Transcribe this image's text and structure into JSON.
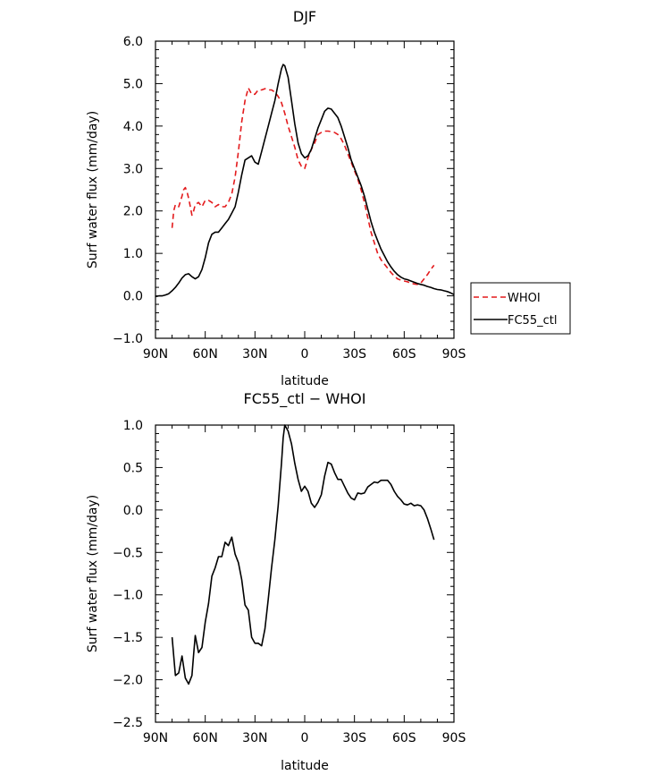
{
  "chart_data": [
    {
      "type": "line",
      "title": "DJF",
      "xlabel": "latitude",
      "ylabel": "Surf water flux (mm/day)",
      "xlim": [
        90,
        -90
      ],
      "ylim": [
        -1.0,
        6.0
      ],
      "x_ticks": [
        90,
        60,
        30,
        0,
        -30,
        -60,
        -90
      ],
      "x_tick_labels": [
        "90N",
        "60N",
        "30N",
        "0",
        "30S",
        "60S",
        "90S"
      ],
      "y_ticks": [
        -1.0,
        0.0,
        1.0,
        2.0,
        3.0,
        4.0,
        5.0,
        6.0
      ],
      "y_tick_labels": [
        "−1.0",
        "0.0",
        "1.0",
        "2.0",
        "3.0",
        "4.0",
        "5.0",
        "6.0"
      ],
      "legend_position": "outside right, lower",
      "series": [
        {
          "name": "WHOI",
          "color": "#e31a1c",
          "dash": "dashed",
          "x": [
            80,
            79,
            78,
            76,
            74,
            73,
            72,
            71,
            70,
            69,
            68,
            67,
            66,
            64,
            62,
            60,
            58,
            56,
            54,
            52,
            50,
            48,
            46,
            44,
            42,
            40,
            38,
            36,
            34,
            32,
            30,
            28,
            26,
            24,
            22,
            20,
            18,
            16,
            14,
            12,
            10,
            8,
            6,
            4,
            2,
            0,
            -2,
            -4,
            -6,
            -8,
            -10,
            -12,
            -14,
            -16,
            -18,
            -20,
            -22,
            -24,
            -26,
            -28,
            -30,
            -32,
            -34,
            -36,
            -38,
            -40,
            -42,
            -44,
            -46,
            -48,
            -50,
            -52,
            -54,
            -56,
            -58,
            -60,
            -62,
            -64,
            -66,
            -68,
            -70,
            -72,
            -74,
            -76,
            -78
          ],
          "y": [
            1.6,
            2.0,
            2.15,
            2.1,
            2.35,
            2.5,
            2.55,
            2.45,
            2.3,
            2.1,
            1.9,
            2.0,
            2.15,
            2.2,
            2.1,
            2.25,
            2.25,
            2.2,
            2.1,
            2.15,
            2.1,
            2.1,
            2.2,
            2.4,
            2.8,
            3.4,
            4.1,
            4.6,
            4.9,
            4.75,
            4.75,
            4.85,
            4.85,
            4.88,
            4.85,
            4.85,
            4.8,
            4.7,
            4.55,
            4.3,
            4.0,
            3.75,
            3.5,
            3.2,
            3.05,
            3.0,
            3.25,
            3.45,
            3.6,
            3.8,
            3.85,
            3.88,
            3.88,
            3.87,
            3.85,
            3.8,
            3.7,
            3.55,
            3.35,
            3.15,
            2.95,
            2.75,
            2.5,
            2.2,
            1.85,
            1.5,
            1.25,
            1.0,
            0.85,
            0.75,
            0.65,
            0.55,
            0.47,
            0.4,
            0.37,
            0.35,
            0.33,
            0.3,
            0.28,
            0.27,
            0.3,
            0.4,
            0.5,
            0.62,
            0.72
          ]
        },
        {
          "name": "FC55_ctl",
          "color": "#000000",
          "dash": "solid",
          "x": [
            90,
            88,
            86,
            84,
            82,
            80,
            78,
            76,
            74,
            72,
            70,
            68,
            66,
            64,
            62,
            60,
            58,
            56,
            54,
            52,
            50,
            48,
            46,
            44,
            42,
            40,
            38,
            36,
            34,
            32,
            30,
            28,
            26,
            24,
            22,
            20,
            18,
            16,
            14,
            13,
            12,
            10,
            8,
            6,
            4,
            2,
            0,
            -2,
            -4,
            -6,
            -8,
            -10,
            -12,
            -14,
            -16,
            -18,
            -20,
            -22,
            -24,
            -26,
            -28,
            -30,
            -32,
            -34,
            -36,
            -38,
            -40,
            -42,
            -44,
            -46,
            -48,
            -50,
            -52,
            -54,
            -56,
            -58,
            -60,
            -62,
            -64,
            -66,
            -68,
            -70,
            -72,
            -74,
            -76,
            -78,
            -80,
            -82,
            -84,
            -86,
            -88,
            -90
          ],
          "y": [
            -0.02,
            0.0,
            0.0,
            0.02,
            0.05,
            0.12,
            0.2,
            0.3,
            0.42,
            0.5,
            0.52,
            0.45,
            0.4,
            0.45,
            0.62,
            0.9,
            1.25,
            1.45,
            1.5,
            1.5,
            1.6,
            1.7,
            1.8,
            1.95,
            2.1,
            2.45,
            2.85,
            3.2,
            3.25,
            3.3,
            3.15,
            3.1,
            3.4,
            3.7,
            4.0,
            4.3,
            4.6,
            5.0,
            5.35,
            5.45,
            5.42,
            5.15,
            4.6,
            4.05,
            3.6,
            3.35,
            3.25,
            3.3,
            3.45,
            3.7,
            3.95,
            4.15,
            4.35,
            4.42,
            4.4,
            4.3,
            4.2,
            4.0,
            3.75,
            3.5,
            3.2,
            3.0,
            2.8,
            2.6,
            2.35,
            2.05,
            1.75,
            1.5,
            1.3,
            1.1,
            0.95,
            0.8,
            0.68,
            0.58,
            0.5,
            0.44,
            0.4,
            0.38,
            0.35,
            0.32,
            0.29,
            0.27,
            0.25,
            0.22,
            0.2,
            0.17,
            0.15,
            0.14,
            0.12,
            0.1,
            0.07,
            0.03
          ]
        }
      ]
    },
    {
      "type": "line",
      "title": "FC55_ctl − WHOI",
      "xlabel": "latitude",
      "ylabel": "Surf water flux (mm/day)",
      "xlim": [
        90,
        -90
      ],
      "ylim": [
        -2.5,
        1.0
      ],
      "x_ticks": [
        90,
        60,
        30,
        0,
        -30,
        -60,
        -90
      ],
      "x_tick_labels": [
        "90N",
        "60N",
        "30N",
        "0",
        "30S",
        "60S",
        "90S"
      ],
      "y_ticks": [
        -2.5,
        -2.0,
        -1.5,
        -1.0,
        -0.5,
        0.0,
        0.5,
        1.0
      ],
      "y_tick_labels": [
        "−2.5",
        "−2.0",
        "−1.5",
        "−1.0",
        "−0.5",
        "0.0",
        "0.5",
        "1.0"
      ],
      "series": [
        {
          "name": "FC55_ctl − WHOI",
          "color": "#000000",
          "dash": "solid",
          "x": [
            80,
            78,
            76,
            74,
            72,
            70,
            68,
            67,
            66,
            64,
            62,
            60,
            58,
            56,
            54,
            52,
            50,
            48,
            46,
            44,
            42,
            40,
            38,
            36,
            34,
            32,
            30,
            28,
            26,
            24,
            22,
            20,
            18,
            16,
            14,
            13,
            12,
            10,
            8,
            6,
            4,
            2,
            0,
            -2,
            -4,
            -6,
            -8,
            -10,
            -12,
            -14,
            -16,
            -18,
            -20,
            -22,
            -24,
            -26,
            -28,
            -30,
            -32,
            -34,
            -36,
            -38,
            -40,
            -42,
            -44,
            -46,
            -48,
            -50,
            -52,
            -54,
            -56,
            -58,
            -60,
            -62,
            -64,
            -66,
            -68,
            -70,
            -72,
            -74,
            -76,
            -78
          ],
          "y": [
            -1.5,
            -1.95,
            -1.92,
            -1.72,
            -1.98,
            -2.05,
            -1.95,
            -1.7,
            -1.48,
            -1.68,
            -1.62,
            -1.32,
            -1.1,
            -0.78,
            -0.68,
            -0.55,
            -0.55,
            -0.38,
            -0.42,
            -0.32,
            -0.52,
            -0.62,
            -0.82,
            -1.12,
            -1.18,
            -1.5,
            -1.57,
            -1.57,
            -1.6,
            -1.4,
            -1.05,
            -0.68,
            -0.35,
            0.05,
            0.55,
            0.85,
            1.0,
            0.93,
            0.78,
            0.55,
            0.36,
            0.22,
            0.28,
            0.22,
            0.08,
            0.03,
            0.09,
            0.18,
            0.4,
            0.56,
            0.54,
            0.44,
            0.36,
            0.36,
            0.28,
            0.2,
            0.14,
            0.12,
            0.2,
            0.19,
            0.2,
            0.27,
            0.3,
            0.33,
            0.32,
            0.35,
            0.35,
            0.35,
            0.3,
            0.22,
            0.16,
            0.12,
            0.07,
            0.06,
            0.08,
            0.05,
            0.06,
            0.05,
            0.0,
            -0.1,
            -0.22,
            -0.35
          ]
        }
      ]
    }
  ]
}
